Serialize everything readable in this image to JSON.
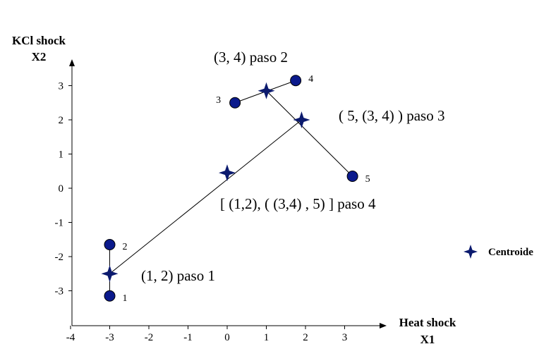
{
  "chart_data": {
    "type": "scatter",
    "xlabel_line1": "Heat shock",
    "xlabel_line2": "X1",
    "ylabel_line1": "KCl shock",
    "ylabel_line2": "X2",
    "xlim": [
      -4,
      3.6
    ],
    "ylim": [
      -4,
      3.8
    ],
    "x_ticks": [
      -4,
      -3,
      -2,
      -1,
      0,
      1,
      2,
      3
    ],
    "y_ticks": [
      -3,
      -2,
      -1,
      0,
      1,
      2,
      3
    ],
    "points": [
      {
        "label": "1",
        "x": -3.0,
        "y": -3.15
      },
      {
        "label": "2",
        "x": -3.0,
        "y": -1.65
      },
      {
        "label": "3",
        "x": 0.2,
        "y": 2.5
      },
      {
        "label": "4",
        "x": 1.75,
        "y": 3.15
      },
      {
        "label": "5",
        "x": 3.2,
        "y": 0.35
      }
    ],
    "centroids": [
      {
        "x": -3.0,
        "y": -2.5
      },
      {
        "x": 1.0,
        "y": 2.85
      },
      {
        "x": 1.9,
        "y": 2.0
      },
      {
        "x": 0.0,
        "y": 0.45
      }
    ],
    "steps": [
      {
        "text": "(1, 2) paso 1"
      },
      {
        "text": "(3, 4) paso 2"
      },
      {
        "text": "( 5, (3, 4) ) paso 3"
      },
      {
        "text": "[ (1,2), ( (3,4) , 5) ] paso 4"
      }
    ],
    "legend": {
      "label": "Centroide",
      "position": "right"
    },
    "colors": {
      "point_fill": "#0b1a8c",
      "centroid_fill": "#0b1a6e",
      "line": "#000000"
    }
  }
}
